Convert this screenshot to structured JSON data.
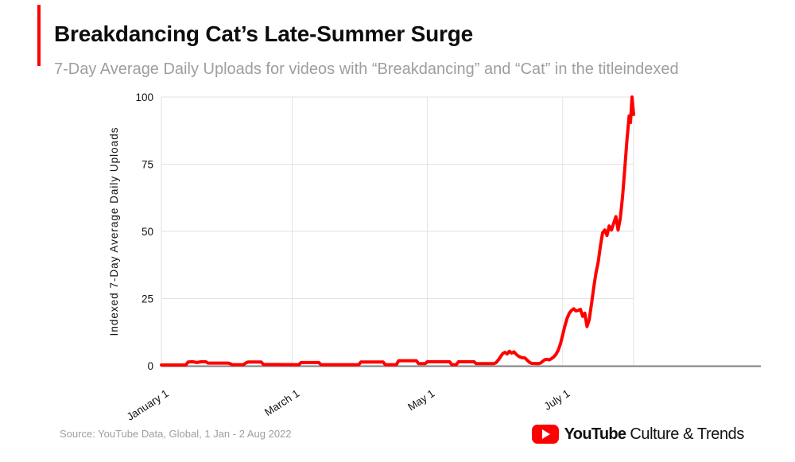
{
  "header": {
    "title": "Breakdancing Cat’s Late-Summer Surge",
    "subtitle": "7-Day Average Daily Uploads for videos with “Breakdancing” and “Cat” in the titleindexed"
  },
  "footer": {
    "source": "Source: YouTube Data, Global, 1 Jan - 2 Aug 2022",
    "logo": {
      "icon": "youtube-play-icon",
      "brand": "YouTube",
      "suffix": "Culture & Trends"
    }
  },
  "colors": {
    "accent_red": "#ff0000",
    "line_red": "#ff0000",
    "grid": "#e2e2e2",
    "axis": "#7f7f7f",
    "tick_text": "#111111",
    "muted_text": "#9e9e9e"
  },
  "chart_data": {
    "type": "line",
    "title": "Breakdancing Cat’s Late-Summer Surge",
    "ylabel": "Indexed 7-Day Average Daily Uploads",
    "xlabel": "",
    "x_unit": "days since 1 Jan 2022",
    "x_range_days": [
      0,
      213
    ],
    "ylim": [
      0,
      100
    ],
    "grid": true,
    "legend": "none",
    "y_ticks": [
      0,
      25,
      50,
      75,
      100
    ],
    "x_ticks": [
      {
        "day": 0,
        "label": "January 1"
      },
      {
        "day": 59,
        "label": "March 1"
      },
      {
        "day": 120,
        "label": "May 1"
      },
      {
        "day": 181,
        "label": "July 1"
      }
    ],
    "series": [
      {
        "name": "Indexed 7-Day Average Daily Uploads",
        "color": "#ff0000",
        "points": [
          [
            0,
            0.3
          ],
          [
            11,
            0.3
          ],
          [
            12,
            1.4
          ],
          [
            14,
            1.5
          ],
          [
            16,
            1.2
          ],
          [
            18,
            1.5
          ],
          [
            20,
            1.5
          ],
          [
            21,
            1.0
          ],
          [
            30,
            1.0
          ],
          [
            31,
            0.8
          ],
          [
            32,
            0.4
          ],
          [
            37,
            0.4
          ],
          [
            38,
            1.0
          ],
          [
            39,
            1.4
          ],
          [
            45,
            1.4
          ],
          [
            46,
            0.5
          ],
          [
            62,
            0.4
          ],
          [
            63,
            1.2
          ],
          [
            71,
            1.2
          ],
          [
            72,
            0.4
          ],
          [
            89,
            0.4
          ],
          [
            90,
            1.4
          ],
          [
            100,
            1.4
          ],
          [
            101,
            0.4
          ],
          [
            106,
            0.4
          ],
          [
            107,
            1.9
          ],
          [
            115,
            1.9
          ],
          [
            116,
            0.8
          ],
          [
            119,
            0.8
          ],
          [
            120,
            1.5
          ],
          [
            130,
            1.5
          ],
          [
            131,
            0.4
          ],
          [
            133,
            0.4
          ],
          [
            134,
            1.5
          ],
          [
            141,
            1.5
          ],
          [
            142,
            0.8
          ],
          [
            150,
            0.8
          ],
          [
            151,
            1.2
          ],
          [
            152,
            2.2
          ],
          [
            153,
            3.4
          ],
          [
            154,
            4.6
          ],
          [
            155,
            5.0
          ],
          [
            156,
            4.4
          ],
          [
            157,
            5.4
          ],
          [
            158,
            4.7
          ],
          [
            159,
            5.2
          ],
          [
            160,
            4.3
          ],
          [
            161,
            3.6
          ],
          [
            162,
            3.2
          ],
          [
            163,
            3.0
          ],
          [
            164,
            2.9
          ],
          [
            165,
            2.1
          ],
          [
            166,
            1.3
          ],
          [
            167,
            0.9
          ],
          [
            170,
            0.8
          ],
          [
            171,
            1.0
          ],
          [
            172,
            1.7
          ],
          [
            173,
            2.3
          ],
          [
            174,
            2.4
          ],
          [
            175,
            2.2
          ],
          [
            176,
            2.7
          ],
          [
            177,
            3.3
          ],
          [
            178,
            4.3
          ],
          [
            179,
            5.8
          ],
          [
            180,
            8.2
          ],
          [
            181,
            11.5
          ],
          [
            182,
            14.8
          ],
          [
            183,
            17.6
          ],
          [
            184,
            19.6
          ],
          [
            185,
            20.6
          ],
          [
            186,
            21.2
          ],
          [
            187,
            20.4
          ],
          [
            188,
            20.6
          ],
          [
            189,
            21.0
          ],
          [
            190,
            18.4
          ],
          [
            191,
            19.6
          ],
          [
            192,
            14.6
          ],
          [
            193,
            17.2
          ],
          [
            194,
            23.0
          ],
          [
            195,
            29.0
          ],
          [
            196,
            34.5
          ],
          [
            197,
            38.5
          ],
          [
            198,
            44.5
          ],
          [
            199,
            49.5
          ],
          [
            200,
            50.5
          ],
          [
            201,
            48.5
          ],
          [
            202,
            52.0
          ],
          [
            203,
            50.5
          ],
          [
            204,
            53.0
          ],
          [
            205,
            55.5
          ],
          [
            206,
            50.5
          ],
          [
            207,
            55.0
          ],
          [
            208,
            63.0
          ],
          [
            209,
            73.0
          ],
          [
            210,
            84.0
          ],
          [
            211,
            93.0
          ],
          [
            211.6,
            90.5
          ],
          [
            212.3,
            100.0
          ],
          [
            213,
            93.5
          ]
        ]
      }
    ]
  }
}
